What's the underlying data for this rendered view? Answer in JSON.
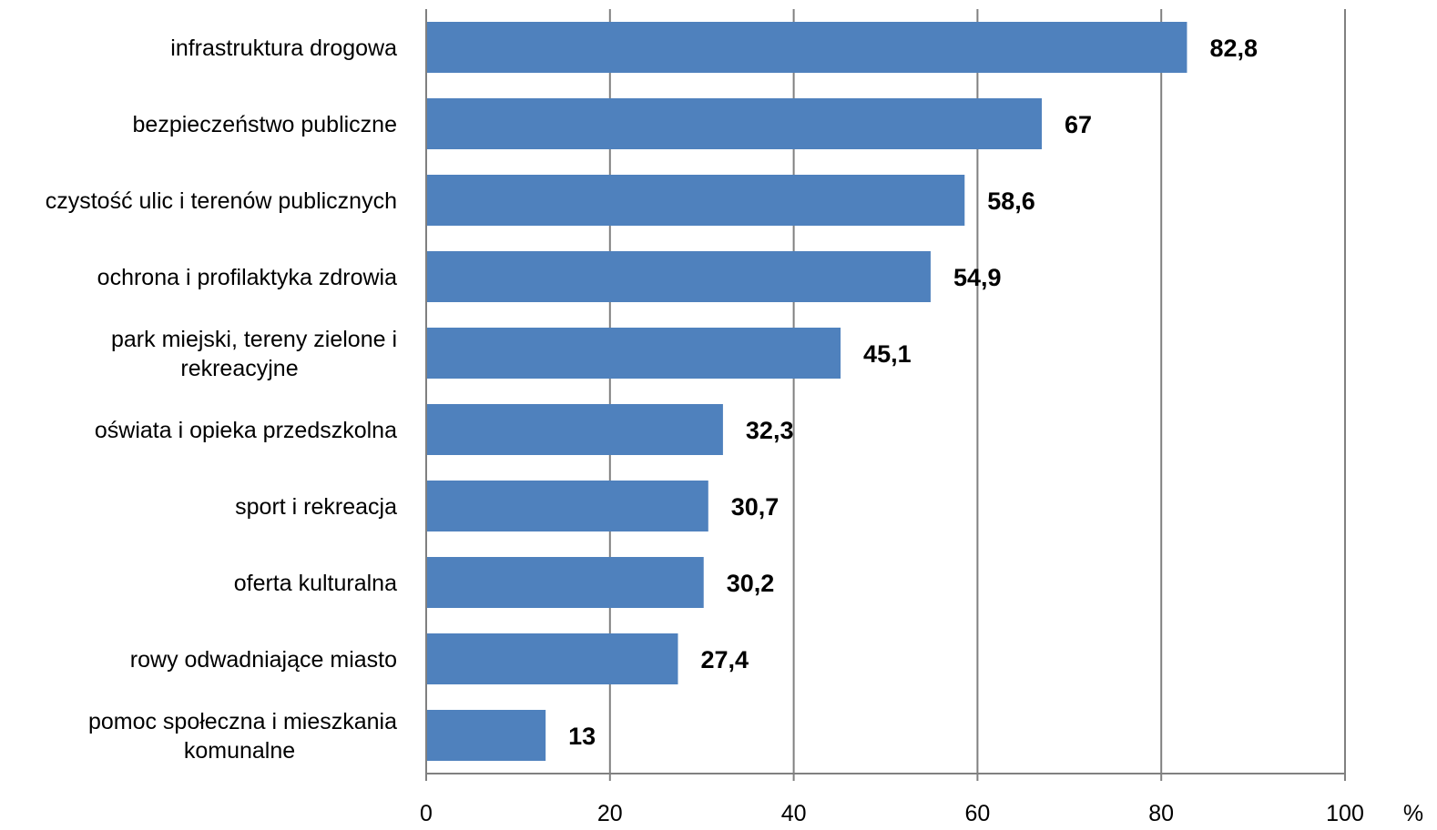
{
  "chart_data": {
    "type": "bar",
    "orientation": "horizontal",
    "categories": [
      "infrastruktura drogowa",
      "bezpieczeństwo publiczne",
      "czystość ulic i terenów publicznych",
      "ochrona i profilaktyka zdrowia",
      "park miejski, tereny zielone i rekreacyjne",
      "oświata i opieka przedszkolna",
      "sport i rekreacja",
      "oferta kulturalna",
      "rowy odwadniające miasto",
      "pomoc społeczna i mieszkania komunalne"
    ],
    "category_lines": [
      [
        "infrastruktura drogowa"
      ],
      [
        "bezpieczeństwo publiczne"
      ],
      [
        "czystość ulic i terenów publicznych"
      ],
      [
        "ochrona i profilaktyka zdrowia"
      ],
      [
        "park miejski, tereny zielone i",
        "rekreacyjne"
      ],
      [
        "oświata i opieka przedszkolna"
      ],
      [
        "sport i rekreacja"
      ],
      [
        "oferta kulturalna"
      ],
      [
        "rowy odwadniające miasto"
      ],
      [
        "pomoc społeczna i mieszkania",
        "komunalne"
      ]
    ],
    "values": [
      82.8,
      67,
      58.6,
      54.9,
      45.1,
      32.3,
      30.7,
      30.2,
      27.4,
      13
    ],
    "value_labels": [
      "82,8",
      "67",
      "58,6",
      "54,9",
      "45,1",
      "32,3",
      "30,7",
      "30,2",
      "27,4",
      "13"
    ],
    "xticks": [
      "0",
      "20",
      "40",
      "60",
      "80",
      "100"
    ],
    "xlim": [
      0,
      100
    ],
    "xunit": "%",
    "grid": true,
    "legend": "none",
    "bar_color": "#4F81BD",
    "grid_color": "#808080"
  }
}
